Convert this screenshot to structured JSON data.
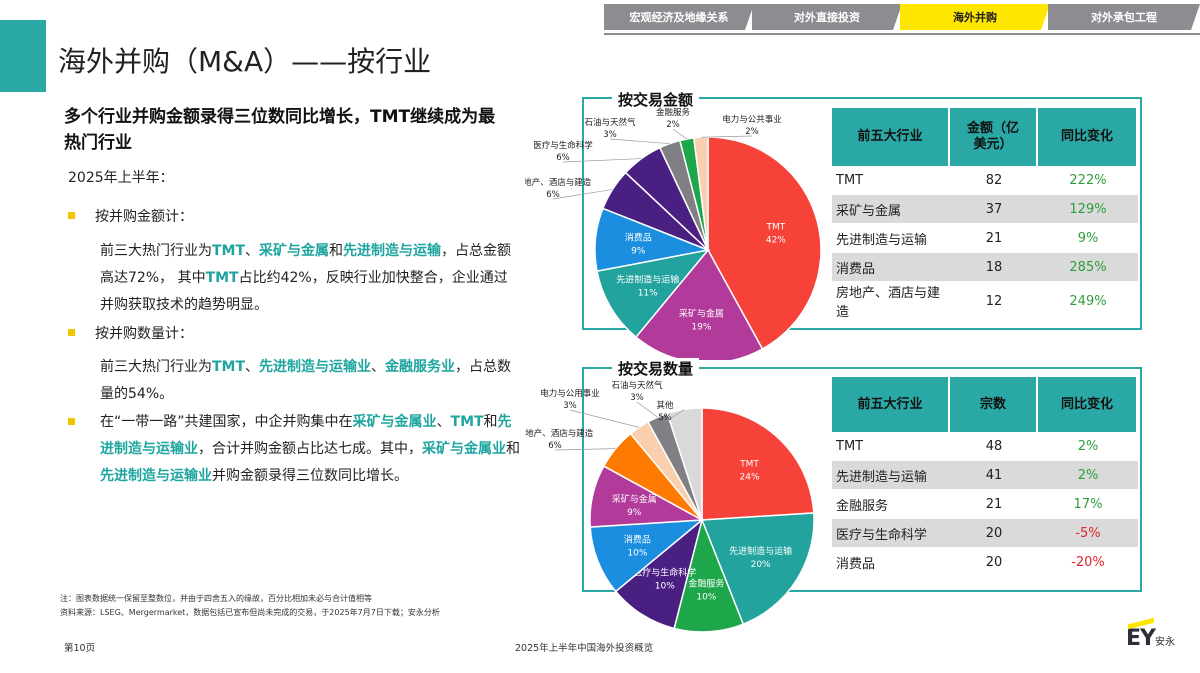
{
  "nav": {
    "tabs": [
      {
        "label": "宏观经济及地缘关系",
        "active": false
      },
      {
        "label": "对外直接投资",
        "active": false
      },
      {
        "label": "海外并购",
        "active": true
      },
      {
        "label": "对外承包工程",
        "active": false
      }
    ]
  },
  "page": {
    "title": "海外并购（M&A）——按行业",
    "headline": "多个行业并购金额录得三位数同比增长，TMT继续成为最热门行业",
    "period": "2025年上半年："
  },
  "bullets": {
    "b1": "按并购金额计：",
    "p1": [
      {
        "t": "前三大热门行业为",
        "h": false
      },
      {
        "t": "TMT",
        "h": true
      },
      {
        "t": "、",
        "h": false
      },
      {
        "t": "采矿与金属",
        "h": true
      },
      {
        "t": "和",
        "h": false
      },
      {
        "t": "先进制造与运输",
        "h": true
      },
      {
        "t": "，占总金额高达72%， 其中",
        "h": false
      },
      {
        "t": "TMT",
        "h": true
      },
      {
        "t": "占比约42%，反映行业加快整合，企业通过并购获取技术的趋势明显。",
        "h": false
      }
    ],
    "b2": "按并购数量计：",
    "p2": [
      {
        "t": "前三大热门行业为",
        "h": false
      },
      {
        "t": "TMT",
        "h": true
      },
      {
        "t": "、",
        "h": false
      },
      {
        "t": "先进制造与运输业",
        "h": true
      },
      {
        "t": "、",
        "h": false
      },
      {
        "t": "金融服务业",
        "h": true
      },
      {
        "t": "，占总数量的54%。",
        "h": false
      }
    ],
    "b3": [
      {
        "t": "在“一带一路”共建国家，中企并购集中在",
        "h": false
      },
      {
        "t": "采矿与金属业",
        "h": true
      },
      {
        "t": "、",
        "h": false
      },
      {
        "t": "TMT",
        "h": true
      },
      {
        "t": "和",
        "h": false
      },
      {
        "t": "先进制造与运输业",
        "h": true
      },
      {
        "t": "，合计并购金额占比达七成。其中，",
        "h": false
      },
      {
        "t": "采矿与金属业",
        "h": true
      },
      {
        "t": "和",
        "h": false
      },
      {
        "t": "先进制造与运输业",
        "h": true
      },
      {
        "t": "并购金额录得三位数同比增长。",
        "h": false
      }
    ]
  },
  "notes": {
    "note1": "注：图表数据统一保留至整数位，并由于四舍五入的缘故，百分比相加未必与合计值相等",
    "note2": "资料来源：LSEG、Mergermarket，数据包括已宣布但尚未完成的交易，于2025年7月7日下载；安永分析"
  },
  "footer": {
    "page_no": "第10页",
    "center": "2025年上半年中国海外投资概览",
    "logo": "EY",
    "logo_cn": "安永"
  },
  "colors": {
    "teal": "#2aa8a5",
    "yellow": "#ffe600",
    "positive": "#2e9e3c",
    "negative": "#e0262c"
  },
  "chart_data": [
    {
      "type": "pie",
      "title": "按交易金额",
      "slices": [
        {
          "label": "TMT",
          "value": 42,
          "color": "#f64239"
        },
        {
          "label": "采矿与金属",
          "value": 19,
          "color": "#b23a9a"
        },
        {
          "label": "先进制造与运输",
          "value": 11,
          "color": "#22a39e"
        },
        {
          "label": "消费品",
          "value": 9,
          "color": "#1b8ee0"
        },
        {
          "label": "房地产、酒店与建造",
          "value": 6,
          "color": "#4a1f82"
        },
        {
          "label": "医疗与生命科学",
          "value": 6,
          "color": "#4a1f82"
        },
        {
          "label": "石油与天然气",
          "value": 3,
          "color": "#7f7f84"
        },
        {
          "label": "金融服务",
          "value": 2,
          "color": "#1ea64a"
        },
        {
          "label": "电力与公共事业",
          "value": 2,
          "color": "#f9cfae"
        }
      ],
      "table": {
        "headers": [
          "前五大行业",
          "金额（亿美元）",
          "同比变化"
        ],
        "rows": [
          {
            "industry": "TMT",
            "value": "82",
            "change": "222%",
            "dir": "pos"
          },
          {
            "industry": "采矿与金属",
            "value": "37",
            "change": "129%",
            "dir": "pos"
          },
          {
            "industry": "先进制造与运输",
            "value": "21",
            "change": "9%",
            "dir": "pos"
          },
          {
            "industry": "消费品",
            "value": "18",
            "change": "285%",
            "dir": "pos"
          },
          {
            "industry": "房地产、酒店与建造",
            "value": "12",
            "change": "249%",
            "dir": "pos"
          }
        ]
      }
    },
    {
      "type": "pie",
      "title": "按交易数量",
      "slices": [
        {
          "label": "TMT",
          "value": 24,
          "color": "#f64239"
        },
        {
          "label": "先进制造与运输",
          "value": 20,
          "color": "#22a39e"
        },
        {
          "label": "金融服务",
          "value": 10,
          "color": "#1ea64a"
        },
        {
          "label": "医疗与生命科学",
          "value": 10,
          "color": "#4a1f82"
        },
        {
          "label": "消费品",
          "value": 10,
          "color": "#1b8ee0"
        },
        {
          "label": "采矿与金属",
          "value": 9,
          "color": "#b23a9a"
        },
        {
          "label": "房地产、酒店与建造",
          "value": 6,
          "color": "#ff7a00"
        },
        {
          "label": "电力与公用事业",
          "value": 3,
          "color": "#f9cfae"
        },
        {
          "label": "石油与天然气",
          "value": 3,
          "color": "#7f7f84"
        },
        {
          "label": "其他",
          "value": 5,
          "color": "#d9d9d9"
        }
      ],
      "table": {
        "headers": [
          "前五大行业",
          "宗数",
          "同比变化"
        ],
        "rows": [
          {
            "industry": "TMT",
            "value": "48",
            "change": "2%",
            "dir": "pos"
          },
          {
            "industry": "先进制造与运输",
            "value": "41",
            "change": "2%",
            "dir": "pos"
          },
          {
            "industry": "金融服务",
            "value": "21",
            "change": "17%",
            "dir": "pos"
          },
          {
            "industry": "医疗与生命科学",
            "value": "20",
            "change": "-5%",
            "dir": "neg"
          },
          {
            "industry": "消费品",
            "value": "20",
            "change": "-20%",
            "dir": "neg"
          }
        ]
      }
    }
  ]
}
